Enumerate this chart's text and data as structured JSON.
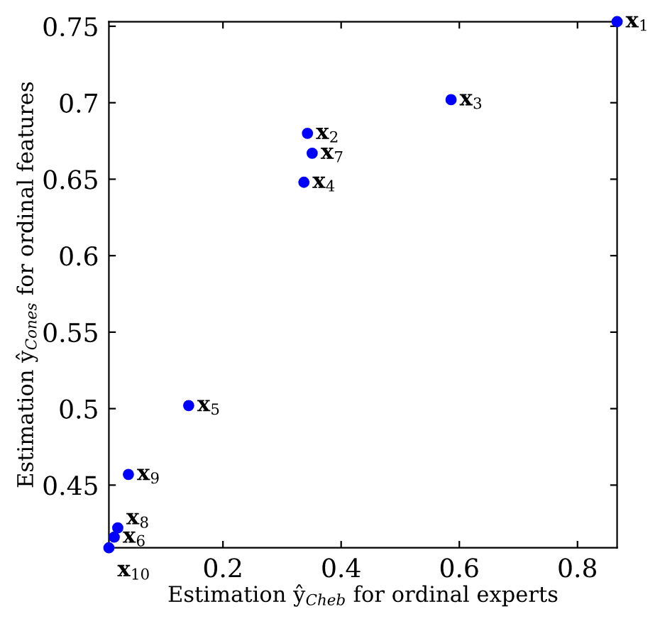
{
  "chart_data": {
    "type": "scatter",
    "xlabel": "Estimation ŷ$_{Cheb}$ for ordinal experts",
    "ylabel": "Estimation ŷ$_{Cones}$ for ordinal features",
    "x": [
      0.867,
      0.343,
      0.586,
      0.337,
      0.142,
      0.016,
      0.351,
      0.022,
      0.04,
      0.007
    ],
    "series": [
      {
        "color": "#0000ff",
        "values": [
          0.753,
          0.68,
          0.702,
          0.648,
          0.502,
          0.416,
          0.667,
          0.422,
          0.457,
          0.409
        ]
      }
    ],
    "marker": "circle",
    "grid": false,
    "legend": false,
    "xlim": [
      0.007,
      0.867
    ],
    "ylim": [
      0.409,
      0.753
    ],
    "xticks": [
      0.2,
      0.4,
      0.6,
      0.8
    ],
    "yticks": [
      0.45,
      0.5,
      0.55,
      0.6,
      0.65,
      0.7,
      0.75
    ],
    "annotations": [
      {
        "text": "x$_{1}$",
        "x": 0.867,
        "y": 0.753
      },
      {
        "text": "x$_{2}$",
        "x": 0.343,
        "y": 0.68
      },
      {
        "text": "x$_{3}$",
        "x": 0.586,
        "y": 0.702
      },
      {
        "text": "x$_{4}$",
        "x": 0.337,
        "y": 0.648
      },
      {
        "text": "x$_{5}$",
        "x": 0.142,
        "y": 0.502
      },
      {
        "text": "x$_{6}$",
        "x": 0.016,
        "y": 0.416
      },
      {
        "text": "x$_{7}$",
        "x": 0.351,
        "y": 0.667
      },
      {
        "text": "x$_{8}$",
        "x": 0.022,
        "y": 0.422
      },
      {
        "text": "x$_{9}$",
        "x": 0.04,
        "y": 0.457
      },
      {
        "text": "x$_{10}$",
        "x": 0.007,
        "y": 0.409
      }
    ]
  }
}
